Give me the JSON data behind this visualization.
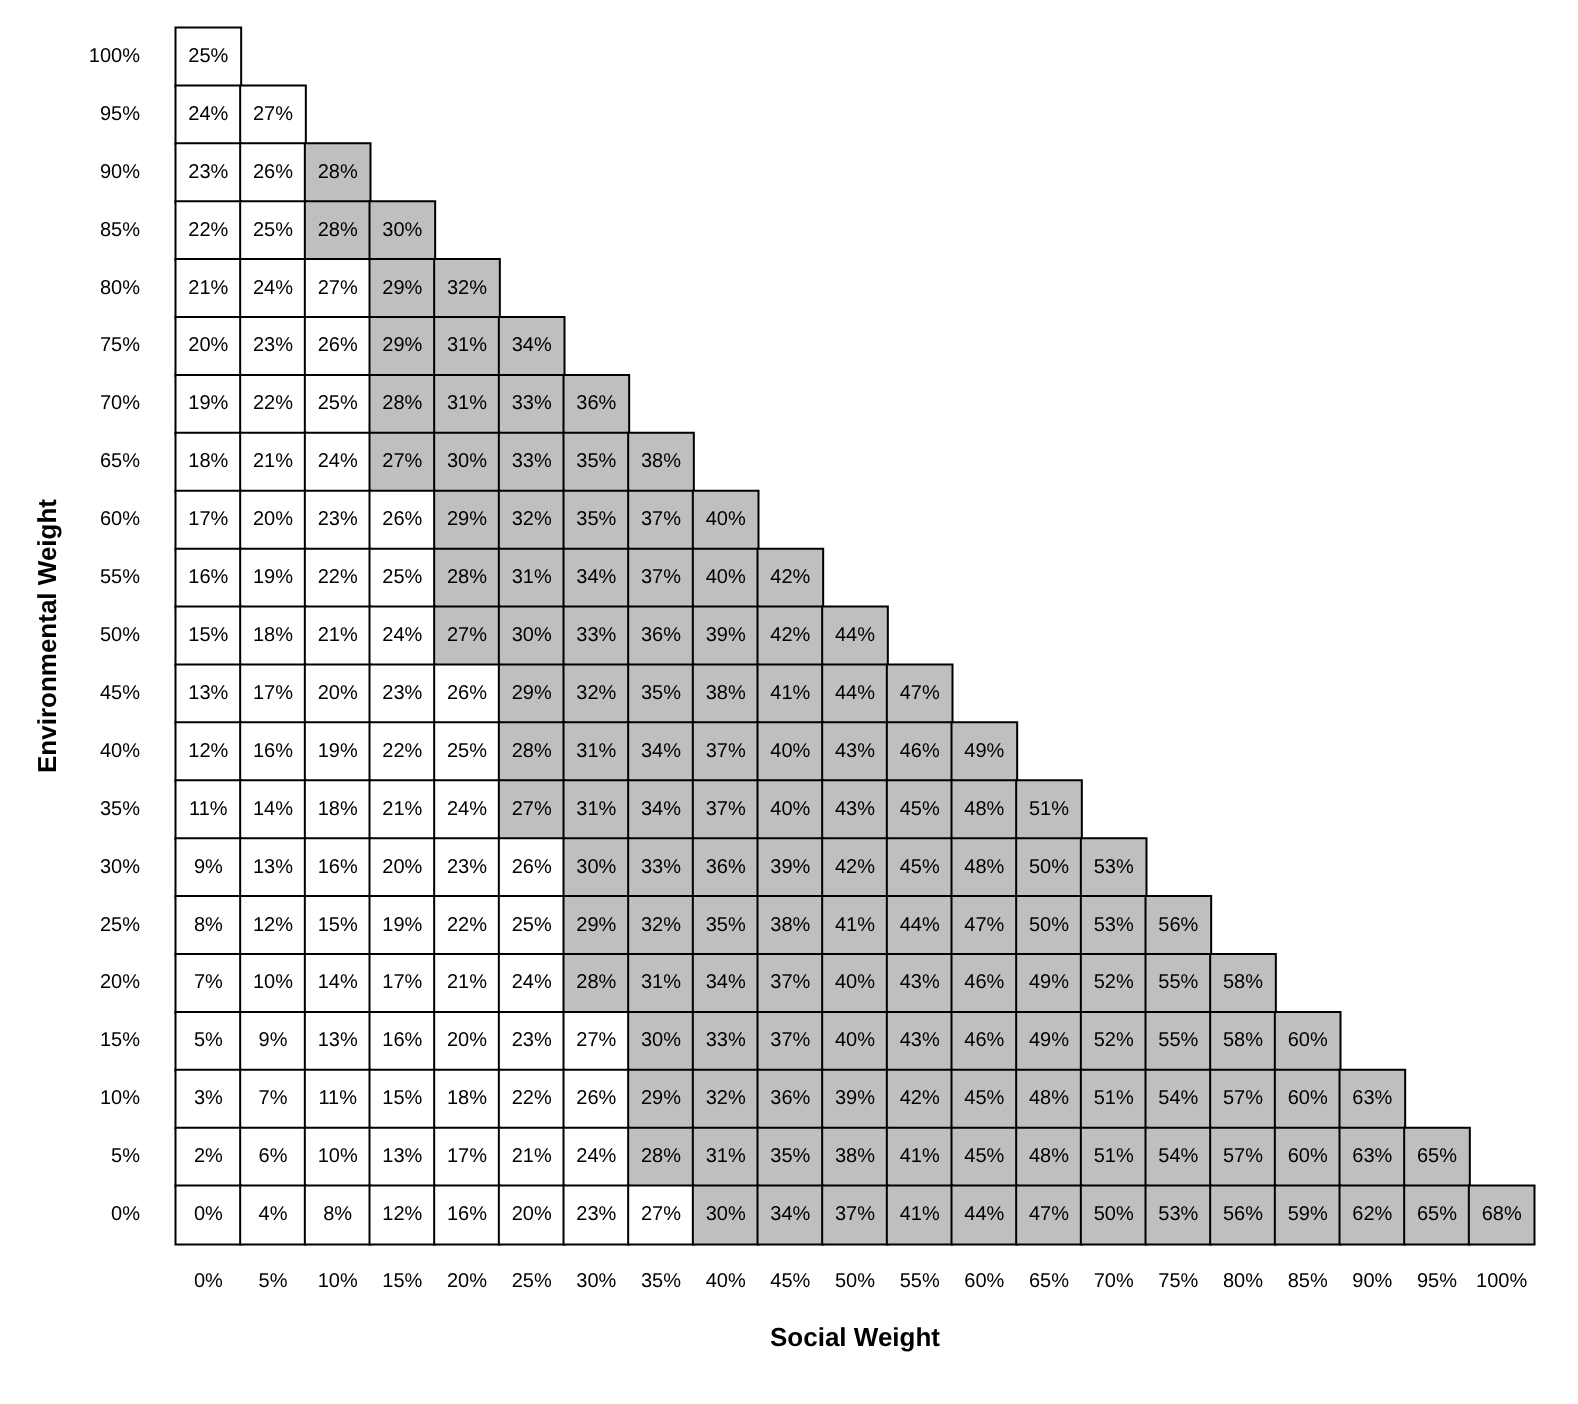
{
  "chart_data": {
    "type": "heatmap",
    "xlabel": "Social Weight",
    "ylabel": "Environmental Weight",
    "categories": [
      "0%",
      "5%",
      "10%",
      "15%",
      "20%",
      "25%",
      "30%",
      "35%",
      "40%",
      "45%",
      "50%",
      "55%",
      "60%",
      "65%",
      "70%",
      "75%",
      "80%",
      "85%",
      "90%",
      "95%",
      "100%"
    ],
    "y_categories": [
      "100%",
      "95%",
      "90%",
      "85%",
      "80%",
      "75%",
      "70%",
      "65%",
      "60%",
      "55%",
      "50%",
      "45%",
      "40%",
      "35%",
      "30%",
      "25%",
      "20%",
      "15%",
      "10%",
      "5%",
      "0%"
    ],
    "cells": [
      [
        25,
        null,
        null,
        null,
        null,
        null,
        null,
        null,
        null,
        null,
        null,
        null,
        null,
        null,
        null,
        null,
        null,
        null,
        null,
        null,
        null
      ],
      [
        24,
        27,
        null,
        null,
        null,
        null,
        null,
        null,
        null,
        null,
        null,
        null,
        null,
        null,
        null,
        null,
        null,
        null,
        null,
        null,
        null
      ],
      [
        23,
        26,
        28,
        null,
        null,
        null,
        null,
        null,
        null,
        null,
        null,
        null,
        null,
        null,
        null,
        null,
        null,
        null,
        null,
        null,
        null
      ],
      [
        22,
        25,
        28,
        30,
        null,
        null,
        null,
        null,
        null,
        null,
        null,
        null,
        null,
        null,
        null,
        null,
        null,
        null,
        null,
        null,
        null
      ],
      [
        21,
        24,
        27,
        29,
        32,
        null,
        null,
        null,
        null,
        null,
        null,
        null,
        null,
        null,
        null,
        null,
        null,
        null,
        null,
        null,
        null
      ],
      [
        20,
        23,
        26,
        29,
        31,
        34,
        null,
        null,
        null,
        null,
        null,
        null,
        null,
        null,
        null,
        null,
        null,
        null,
        null,
        null,
        null
      ],
      [
        19,
        22,
        25,
        28,
        31,
        33,
        36,
        null,
        null,
        null,
        null,
        null,
        null,
        null,
        null,
        null,
        null,
        null,
        null,
        null,
        null
      ],
      [
        18,
        21,
        24,
        27,
        30,
        33,
        35,
        38,
        null,
        null,
        null,
        null,
        null,
        null,
        null,
        null,
        null,
        null,
        null,
        null,
        null
      ],
      [
        17,
        20,
        23,
        26,
        29,
        32,
        35,
        37,
        40,
        null,
        null,
        null,
        null,
        null,
        null,
        null,
        null,
        null,
        null,
        null,
        null
      ],
      [
        16,
        19,
        22,
        25,
        28,
        31,
        34,
        37,
        40,
        42,
        null,
        null,
        null,
        null,
        null,
        null,
        null,
        null,
        null,
        null,
        null
      ],
      [
        15,
        18,
        21,
        24,
        27,
        30,
        33,
        36,
        39,
        42,
        44,
        null,
        null,
        null,
        null,
        null,
        null,
        null,
        null,
        null,
        null
      ],
      [
        13,
        17,
        20,
        23,
        26,
        29,
        32,
        35,
        38,
        41,
        44,
        47,
        null,
        null,
        null,
        null,
        null,
        null,
        null,
        null,
        null
      ],
      [
        12,
        16,
        19,
        22,
        25,
        28,
        31,
        34,
        37,
        40,
        43,
        46,
        49,
        null,
        null,
        null,
        null,
        null,
        null,
        null,
        null
      ],
      [
        11,
        14,
        18,
        21,
        24,
        27,
        31,
        34,
        37,
        40,
        43,
        45,
        48,
        51,
        null,
        null,
        null,
        null,
        null,
        null,
        null
      ],
      [
        9,
        13,
        16,
        20,
        23,
        26,
        30,
        33,
        36,
        39,
        42,
        45,
        48,
        50,
        53,
        null,
        null,
        null,
        null,
        null,
        null
      ],
      [
        8,
        12,
        15,
        19,
        22,
        25,
        29,
        32,
        35,
        38,
        41,
        44,
        47,
        50,
        53,
        56,
        null,
        null,
        null,
        null,
        null
      ],
      [
        7,
        10,
        14,
        17,
        21,
        24,
        28,
        31,
        34,
        37,
        40,
        43,
        46,
        49,
        52,
        55,
        58,
        null,
        null,
        null,
        null
      ],
      [
        5,
        9,
        13,
        16,
        20,
        23,
        27,
        30,
        33,
        37,
        40,
        43,
        46,
        49,
        52,
        55,
        58,
        60,
        null,
        null,
        null
      ],
      [
        3,
        7,
        11,
        15,
        18,
        22,
        26,
        29,
        32,
        36,
        39,
        42,
        45,
        48,
        51,
        54,
        57,
        60,
        63,
        null,
        null
      ],
      [
        2,
        6,
        10,
        13,
        17,
        21,
        24,
        28,
        31,
        35,
        38,
        41,
        45,
        48,
        51,
        54,
        57,
        60,
        63,
        65,
        null
      ],
      [
        0,
        4,
        8,
        12,
        16,
        20,
        23,
        27,
        30,
        34,
        37,
        41,
        44,
        47,
        50,
        53,
        56,
        59,
        62,
        65,
        68
      ]
    ],
    "cell_labels": [
      [
        "25%",
        null,
        null,
        null,
        null,
        null,
        null,
        null,
        null,
        null,
        null,
        null,
        null,
        null,
        null,
        null,
        null,
        null,
        null,
        null,
        null
      ],
      [
        "24%",
        "27%",
        null,
        null,
        null,
        null,
        null,
        null,
        null,
        null,
        null,
        null,
        null,
        null,
        null,
        null,
        null,
        null,
        null,
        null,
        null
      ],
      [
        "23%",
        "26%",
        "28%",
        null,
        null,
        null,
        null,
        null,
        null,
        null,
        null,
        null,
        null,
        null,
        null,
        null,
        null,
        null,
        null,
        null,
        null
      ],
      [
        "22%",
        "25%",
        "28%",
        "30%",
        null,
        null,
        null,
        null,
        null,
        null,
        null,
        null,
        null,
        null,
        null,
        null,
        null,
        null,
        null,
        null,
        null
      ],
      [
        "21%",
        "24%",
        "27%",
        "29%",
        "32%",
        null,
        null,
        null,
        null,
        null,
        null,
        null,
        null,
        null,
        null,
        null,
        null,
        null,
        null,
        null,
        null
      ],
      [
        "20%",
        "23%",
        "26%",
        "29%",
        "31%",
        "34%",
        null,
        null,
        null,
        null,
        null,
        null,
        null,
        null,
        null,
        null,
        null,
        null,
        null,
        null,
        null
      ],
      [
        "19%",
        "22%",
        "25%",
        "28%",
        "31%",
        "33%",
        "36%",
        null,
        null,
        null,
        null,
        null,
        null,
        null,
        null,
        null,
        null,
        null,
        null,
        null,
        null
      ],
      [
        "18%",
        "21%",
        "24%",
        "27%",
        "30%",
        "33%",
        "35%",
        "38%",
        null,
        null,
        null,
        null,
        null,
        null,
        null,
        null,
        null,
        null,
        null,
        null,
        null
      ],
      [
        "17%",
        "20%",
        "23%",
        "26%",
        "29%",
        "32%",
        "35%",
        "37%",
        "40%",
        null,
        null,
        null,
        null,
        null,
        null,
        null,
        null,
        null,
        null,
        null,
        null
      ],
      [
        "16%",
        "19%",
        "22%",
        "25%",
        "28%",
        "31%",
        "34%",
        "37%",
        "40%",
        "42%",
        null,
        null,
        null,
        null,
        null,
        null,
        null,
        null,
        null,
        null,
        null
      ],
      [
        "15%",
        "18%",
        "21%",
        "24%",
        "27%",
        "30%",
        "33%",
        "36%",
        "39%",
        "42%",
        "44%",
        null,
        null,
        null,
        null,
        null,
        null,
        null,
        null,
        null,
        null
      ],
      [
        "13%",
        "17%",
        "20%",
        "23%",
        "26%",
        "29%",
        "32%",
        "35%",
        "38%",
        "41%",
        "44%",
        "47%",
        null,
        null,
        null,
        null,
        null,
        null,
        null,
        null,
        null
      ],
      [
        "12%",
        "16%",
        "19%",
        "22%",
        "25%",
        "28%",
        "31%",
        "34%",
        "37%",
        "40%",
        "43%",
        "46%",
        "49%",
        null,
        null,
        null,
        null,
        null,
        null,
        null,
        null
      ],
      [
        "11%",
        "14%",
        "18%",
        "21%",
        "24%",
        "27%",
        "31%",
        "34%",
        "37%",
        "40%",
        "43%",
        "45%",
        "48%",
        "51%",
        null,
        null,
        null,
        null,
        null,
        null,
        null
      ],
      [
        "9%",
        "13%",
        "16%",
        "20%",
        "23%",
        "26%",
        "30%",
        "33%",
        "36%",
        "39%",
        "42%",
        "45%",
        "48%",
        "50%",
        "53%",
        null,
        null,
        null,
        null,
        null,
        null
      ],
      [
        "8%",
        "12%",
        "15%",
        "19%",
        "22%",
        "25%",
        "29%",
        "32%",
        "35%",
        "38%",
        "41%",
        "44%",
        "47%",
        "50%",
        "53%",
        "56%",
        null,
        null,
        null,
        null,
        null
      ],
      [
        "7%",
        "10%",
        "14%",
        "17%",
        "21%",
        "24%",
        "28%",
        "31%",
        "34%",
        "37%",
        "40%",
        "43%",
        "46%",
        "49%",
        "52%",
        "55%",
        "58%",
        null,
        null,
        null,
        null
      ],
      [
        "5%",
        "9%",
        "13%",
        "16%",
        "20%",
        "23%",
        "27%",
        "30%",
        "33%",
        "37%",
        "40%",
        "43%",
        "46%",
        "49%",
        "52%",
        "55%",
        "58%",
        "60%",
        null,
        null,
        null
      ],
      [
        "3%",
        "7%",
        "11%",
        "15%",
        "18%",
        "22%",
        "26%",
        "29%",
        "32%",
        "36%",
        "39%",
        "42%",
        "45%",
        "48%",
        "51%",
        "54%",
        "57%",
        "60%",
        "63%",
        null,
        null
      ],
      [
        "2%",
        "6%",
        "10%",
        "13%",
        "17%",
        "21%",
        "24%",
        "28%",
        "31%",
        "35%",
        "38%",
        "41%",
        "45%",
        "48%",
        "51%",
        "54%",
        "57%",
        "60%",
        "63%",
        "65%",
        null
      ],
      [
        "0%",
        "4%",
        "8%",
        "12%",
        "16%",
        "20%",
        "23%",
        "27%",
        "30%",
        "34%",
        "37%",
        "41%",
        "44%",
        "47%",
        "50%",
        "53%",
        "56%",
        "59%",
        "62%",
        "65%",
        "68%"
      ]
    ],
    "colors": [
      [
        "#ffffff",
        null,
        null,
        null,
        null,
        null,
        null,
        null,
        null,
        null,
        null,
        null,
        null,
        null,
        null,
        null,
        null,
        null,
        null,
        null,
        null
      ],
      [
        "#ffffff",
        "#ffffff",
        null,
        null,
        null,
        null,
        null,
        null,
        null,
        null,
        null,
        null,
        null,
        null,
        null,
        null,
        null,
        null,
        null,
        null,
        null
      ],
      [
        "#ffffff",
        "#ffffff",
        "#bfbfbf",
        null,
        null,
        null,
        null,
        null,
        null,
        null,
        null,
        null,
        null,
        null,
        null,
        null,
        null,
        null,
        null,
        null,
        null
      ],
      [
        "#ffffff",
        "#ffffff",
        "#bfbfbf",
        "#bfbfbf",
        null,
        null,
        null,
        null,
        null,
        null,
        null,
        null,
        null,
        null,
        null,
        null,
        null,
        null,
        null,
        null,
        null
      ],
      [
        "#ffffff",
        "#ffffff",
        "#ffffff",
        "#bfbfbf",
        "#bfbfbf",
        null,
        null,
        null,
        null,
        null,
        null,
        null,
        null,
        null,
        null,
        null,
        null,
        null,
        null,
        null,
        null
      ],
      [
        "#ffffff",
        "#ffffff",
        "#ffffff",
        "#bfbfbf",
        "#bfbfbf",
        "#bfbfbf",
        null,
        null,
        null,
        null,
        null,
        null,
        null,
        null,
        null,
        null,
        null,
        null,
        null,
        null,
        null
      ],
      [
        "#ffffff",
        "#ffffff",
        "#ffffff",
        "#bfbfbf",
        "#bfbfbf",
        "#bfbfbf",
        "#bfbfbf",
        null,
        null,
        null,
        null,
        null,
        null,
        null,
        null,
        null,
        null,
        null,
        null,
        null,
        null
      ],
      [
        "#ffffff",
        "#ffffff",
        "#ffffff",
        "#bfbfbf",
        "#bfbfbf",
        "#bfbfbf",
        "#bfbfbf",
        "#bfbfbf",
        null,
        null,
        null,
        null,
        null,
        null,
        null,
        null,
        null,
        null,
        null,
        null,
        null
      ],
      [
        "#ffffff",
        "#ffffff",
        "#ffffff",
        "#ffffff",
        "#bfbfbf",
        "#bfbfbf",
        "#bfbfbf",
        "#bfbfbf",
        "#bfbfbf",
        null,
        null,
        null,
        null,
        null,
        null,
        null,
        null,
        null,
        null,
        null,
        null
      ],
      [
        "#ffffff",
        "#ffffff",
        "#ffffff",
        "#ffffff",
        "#bfbfbf",
        "#bfbfbf",
        "#bfbfbf",
        "#bfbfbf",
        "#bfbfbf",
        "#bfbfbf",
        null,
        null,
        null,
        null,
        null,
        null,
        null,
        null,
        null,
        null,
        null
      ],
      [
        "#ffffff",
        "#ffffff",
        "#ffffff",
        "#ffffff",
        "#bfbfbf",
        "#bfbfbf",
        "#bfbfbf",
        "#bfbfbf",
        "#bfbfbf",
        "#bfbfbf",
        "#bfbfbf",
        null,
        null,
        null,
        null,
        null,
        null,
        null,
        null,
        null,
        null
      ],
      [
        "#ffffff",
        "#ffffff",
        "#ffffff",
        "#ffffff",
        "#ffffff",
        "#bfbfbf",
        "#bfbfbf",
        "#bfbfbf",
        "#bfbfbf",
        "#bfbfbf",
        "#bfbfbf",
        "#bfbfbf",
        null,
        null,
        null,
        null,
        null,
        null,
        null,
        null,
        null
      ],
      [
        "#ffffff",
        "#ffffff",
        "#ffffff",
        "#ffffff",
        "#ffffff",
        "#bfbfbf",
        "#bfbfbf",
        "#bfbfbf",
        "#bfbfbf",
        "#bfbfbf",
        "#bfbfbf",
        "#bfbfbf",
        "#bfbfbf",
        null,
        null,
        null,
        null,
        null,
        null,
        null,
        null
      ],
      [
        "#ffffff",
        "#ffffff",
        "#ffffff",
        "#ffffff",
        "#ffffff",
        "#bfbfbf",
        "#bfbfbf",
        "#bfbfbf",
        "#bfbfbf",
        "#bfbfbf",
        "#bfbfbf",
        "#bfbfbf",
        "#bfbfbf",
        "#bfbfbf",
        null,
        null,
        null,
        null,
        null,
        null,
        null
      ],
      [
        "#ffffff",
        "#ffffff",
        "#ffffff",
        "#ffffff",
        "#ffffff",
        "#ffffff",
        "#bfbfbf",
        "#bfbfbf",
        "#bfbfbf",
        "#bfbfbf",
        "#bfbfbf",
        "#bfbfbf",
        "#bfbfbf",
        "#bfbfbf",
        "#bfbfbf",
        null,
        null,
        null,
        null,
        null,
        null
      ],
      [
        "#ffffff",
        "#ffffff",
        "#ffffff",
        "#ffffff",
        "#ffffff",
        "#ffffff",
        "#bfbfbf",
        "#bfbfbf",
        "#bfbfbf",
        "#bfbfbf",
        "#bfbfbf",
        "#bfbfbf",
        "#bfbfbf",
        "#bfbfbf",
        "#bfbfbf",
        "#bfbfbf",
        null,
        null,
        null,
        null,
        null
      ],
      [
        "#ffffff",
        "#ffffff",
        "#ffffff",
        "#ffffff",
        "#ffffff",
        "#ffffff",
        "#bfbfbf",
        "#bfbfbf",
        "#bfbfbf",
        "#bfbfbf",
        "#bfbfbf",
        "#bfbfbf",
        "#bfbfbf",
        "#bfbfbf",
        "#bfbfbf",
        "#bfbfbf",
        "#bfbfbf",
        null,
        null,
        null,
        null
      ],
      [
        "#ffffff",
        "#ffffff",
        "#ffffff",
        "#ffffff",
        "#ffffff",
        "#ffffff",
        "#ffffff",
        "#bfbfbf",
        "#bfbfbf",
        "#bfbfbf",
        "#bfbfbf",
        "#bfbfbf",
        "#bfbfbf",
        "#bfbfbf",
        "#bfbfbf",
        "#bfbfbf",
        "#bfbfbf",
        "#bfbfbf",
        null,
        null,
        null
      ],
      [
        "#ffffff",
        "#ffffff",
        "#ffffff",
        "#ffffff",
        "#ffffff",
        "#ffffff",
        "#ffffff",
        "#bfbfbf",
        "#bfbfbf",
        "#bfbfbf",
        "#bfbfbf",
        "#bfbfbf",
        "#bfbfbf",
        "#bfbfbf",
        "#bfbfbf",
        "#bfbfbf",
        "#bfbfbf",
        "#bfbfbf",
        "#bfbfbf",
        null,
        null
      ],
      [
        "#ffffff",
        "#ffffff",
        "#ffffff",
        "#ffffff",
        "#ffffff",
        "#ffffff",
        "#ffffff",
        "#bfbfbf",
        "#bfbfbf",
        "#bfbfbf",
        "#bfbfbf",
        "#bfbfbf",
        "#bfbfbf",
        "#bfbfbf",
        "#bfbfbf",
        "#bfbfbf",
        "#bfbfbf",
        "#bfbfbf",
        "#bfbfbf",
        "#bfbfbf",
        null
      ],
      [
        "#ffffff",
        "#ffffff",
        "#ffffff",
        "#ffffff",
        "#ffffff",
        "#ffffff",
        "#ffffff",
        "#ffffff",
        "#bfbfbf",
        "#bfbfbf",
        "#bfbfbf",
        "#bfbfbf",
        "#bfbfbf",
        "#bfbfbf",
        "#bfbfbf",
        "#bfbfbf",
        "#bfbfbf",
        "#bfbfbf",
        "#bfbfbf",
        "#bfbfbf",
        "#bfbfbf"
      ]
    ]
  }
}
